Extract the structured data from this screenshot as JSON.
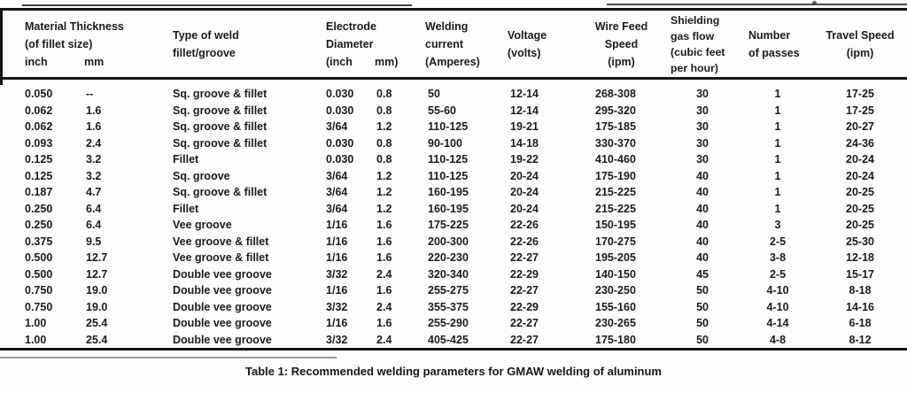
{
  "table": {
    "header": {
      "material": {
        "line1": "Material Thickness",
        "line2": "(of fillet size)",
        "unit1": "inch",
        "unit2": "mm"
      },
      "type": {
        "line1": "Type of weld",
        "line2": "fillet/groove"
      },
      "electrode": {
        "line1": "Electrode",
        "line2": "Diameter",
        "unit1": "(inch",
        "unit2": "mm)"
      },
      "current": {
        "line1": "Welding",
        "line2": "current",
        "line3": "(Amperes)"
      },
      "voltage": {
        "line1": "Voltage",
        "line2": "(volts)"
      },
      "wire_feed": {
        "line1": "Wire Feed",
        "line2": "Speed",
        "line3": "(ipm)"
      },
      "gas_flow": {
        "line1": "Shielding",
        "line2": "gas flow",
        "line3": "(cubic feet",
        "line4": "per hour)"
      },
      "passes": {
        "line1": "Number",
        "line2": "of passes"
      },
      "travel": {
        "line1": "Travel Speed",
        "line2": "(ipm)"
      }
    },
    "rows": [
      [
        "0.050",
        "--",
        "Sq. groove & fillet",
        "0.030",
        "0.8",
        "50",
        "12-14",
        "268-308",
        "30",
        "1",
        "17-25"
      ],
      [
        "0.062",
        "1.6",
        "Sq. groove & fillet",
        "0.030",
        "0.8",
        "55-60",
        "12-14",
        "295-320",
        "30",
        "1",
        "17-25"
      ],
      [
        "0.062",
        "1.6",
        "Sq. groove & fillet",
        "3/64",
        "1.2",
        "110-125",
        "19-21",
        "175-185",
        "30",
        "1",
        "20-27"
      ],
      [
        "0.093",
        "2.4",
        "Sq. groove & fillet",
        "0.030",
        "0.8",
        "90-100",
        "14-18",
        "330-370",
        "30",
        "1",
        "24-36"
      ],
      [
        "0.125",
        "3.2",
        "Fillet",
        "0.030",
        "0.8",
        "110-125",
        "19-22",
        "410-460",
        "30",
        "1",
        "20-24"
      ],
      [
        "0.125",
        "3.2",
        "Sq. groove",
        "3/64",
        "1.2",
        "110-125",
        "20-24",
        "175-190",
        "40",
        "1",
        "20-24"
      ],
      [
        "0.187",
        "4.7",
        "Sq. groove & fillet",
        "3/64",
        "1.2",
        "160-195",
        "20-24",
        "215-225",
        "40",
        "1",
        "20-25"
      ],
      [
        "0.250",
        "6.4",
        "Fillet",
        "3/64",
        "1.2",
        "160-195",
        "20-24",
        "215-225",
        "40",
        "1",
        "20-25"
      ],
      [
        "0.250",
        "6.4",
        "Vee groove",
        "1/16",
        "1.6",
        "175-225",
        "22-26",
        "150-195",
        "40",
        "3",
        "20-25"
      ],
      [
        "0.375",
        "9.5",
        "Vee groove & fillet",
        "1/16",
        "1.6",
        "200-300",
        "22-26",
        "170-275",
        "40",
        "2-5",
        "25-30"
      ],
      [
        "0.500",
        "12.7",
        "Vee groove & fillet",
        "1/16",
        "1.6",
        "220-230",
        "22-27",
        "195-205",
        "40",
        "3-8",
        "12-18"
      ],
      [
        "0.500",
        "12.7",
        "Double vee groove",
        "3/32",
        "2.4",
        "320-340",
        "22-29",
        "140-150",
        "45",
        "2-5",
        "15-17"
      ],
      [
        "0.750",
        "19.0",
        "Double vee groove",
        "1/16",
        "1.6",
        "255-275",
        "22-27",
        "230-250",
        "50",
        "4-10",
        "8-18"
      ],
      [
        "0.750",
        "19.0",
        "Double vee groove",
        "3/32",
        "2.4",
        "355-375",
        "22-29",
        "155-160",
        "50",
        "4-10",
        "14-16"
      ],
      [
        "1.00",
        "25.4",
        "Double vee groove",
        "1/16",
        "1.6",
        "255-290",
        "22-27",
        "230-265",
        "50",
        "4-14",
        "6-18"
      ],
      [
        "1.00",
        "25.4",
        "Double vee groove",
        "3/32",
        "2.4",
        "405-425",
        "22-27",
        "175-180",
        "50",
        "4-8",
        "8-12"
      ]
    ]
  },
  "caption": "Table 1: Recommended welding parameters for GMAW welding of aluminum"
}
